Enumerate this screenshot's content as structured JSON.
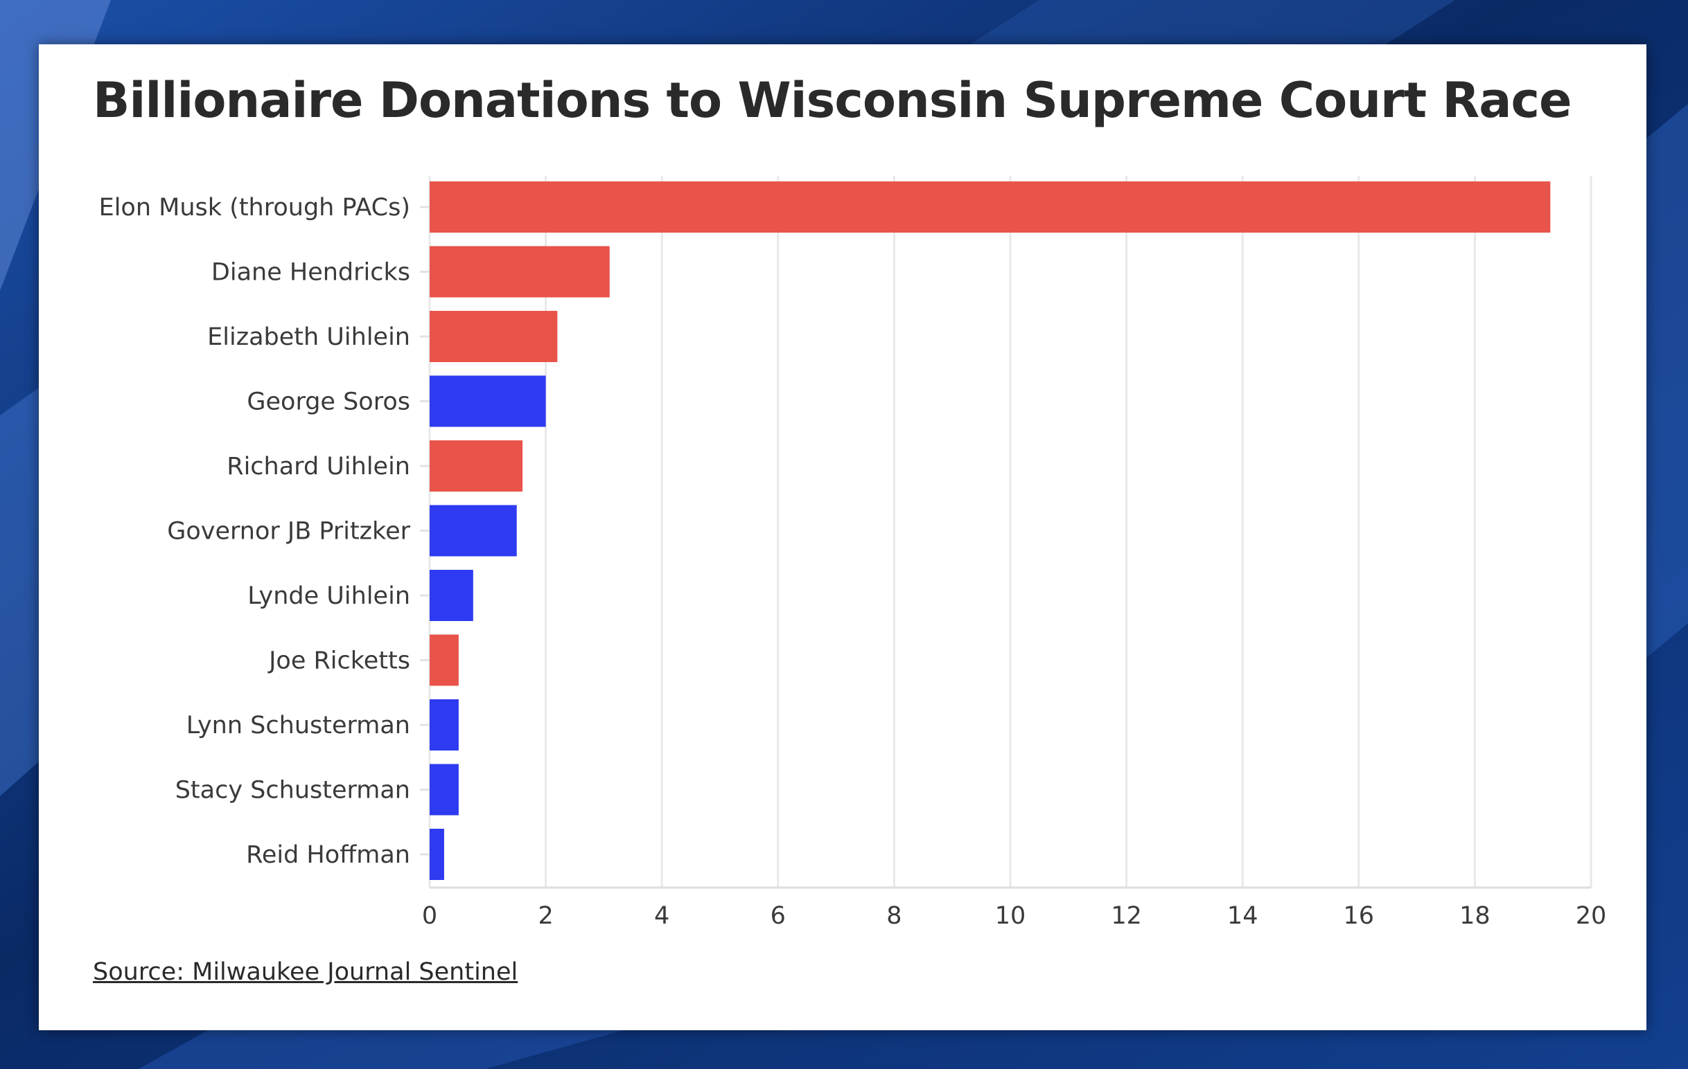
{
  "colors": {
    "republican": "#e8534a",
    "democrat": "#2e3bf0",
    "grid": "#e8e8e8",
    "card": "#ffffff",
    "backdrop": "#0b2a63"
  },
  "source": "Source: Milwaukee Journal Sentinel",
  "chart_data": {
    "type": "bar",
    "orientation": "horizontal",
    "title": "Billionaire Donations to Wisconsin Supreme Court Race",
    "xlabel": "",
    "ylabel": "",
    "xlim": [
      0,
      20
    ],
    "xticks": [
      "0",
      "2",
      "4",
      "6",
      "8",
      "10",
      "12",
      "14",
      "16",
      "18",
      "20"
    ],
    "grid": true,
    "categories": [
      "Elon Musk (through PACs)",
      "Diane Hendricks",
      "Elizabeth Uihlein",
      "George Soros",
      "Richard Uihlein",
      "Governor JB Pritzker",
      "Lynde Uihlein",
      "Joe Ricketts",
      "Lynn Schusterman",
      "Stacy Schusterman",
      "Reid Hoffman"
    ],
    "values": [
      19.3,
      3.1,
      2.2,
      2.0,
      1.6,
      1.5,
      0.75,
      0.5,
      0.5,
      0.5,
      0.25
    ],
    "bar_colors": [
      "republican",
      "republican",
      "republican",
      "democrat",
      "republican",
      "democrat",
      "democrat",
      "republican",
      "democrat",
      "democrat",
      "democrat"
    ]
  }
}
